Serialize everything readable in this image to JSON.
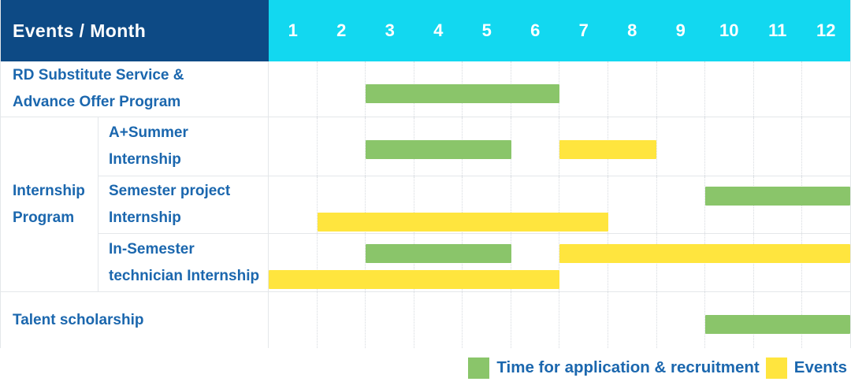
{
  "header": {
    "label": "Events / Month",
    "months": [
      "1",
      "2",
      "3",
      "4",
      "5",
      "6",
      "7",
      "8",
      "9",
      "10",
      "11",
      "12"
    ]
  },
  "rows": {
    "rd": {
      "lines": [
        "RD Substitute Service &",
        "Advance Offer Program"
      ]
    },
    "group": {
      "lines": [
        "Internship",
        "Program"
      ]
    },
    "a_summer": {
      "lines": [
        "A+Summer",
        "Internship"
      ]
    },
    "semester_project": {
      "lines": [
        "Semester project",
        "Internship"
      ]
    },
    "in_semester": {
      "lines": [
        "In-Semester",
        "technician Internship"
      ]
    },
    "talent": {
      "lines": [
        "Talent scholarship"
      ]
    }
  },
  "legend": {
    "application_label": "Time for application & recruitment",
    "event_label": "Events"
  },
  "colors": {
    "navy": "#0d4a85",
    "cyan": "#12d8f0",
    "green": "#8ac56a",
    "yellow": "#ffe53e",
    "text_blue": "#1b67ae"
  },
  "chart_data": {
    "type": "bar",
    "subtype": "gantt-schedule",
    "title": "Events / Month",
    "x_axis": {
      "label": "Month",
      "ticks": [
        1,
        2,
        3,
        4,
        5,
        6,
        7,
        8,
        9,
        10,
        11,
        12
      ],
      "range": [
        1,
        12
      ]
    },
    "bar_semantics": "start and end are month numbers, inclusive",
    "legend": [
      {
        "kind": "application",
        "label": "Time for application & recruitment",
        "color": "#8ac56a"
      },
      {
        "kind": "event",
        "label": "Events",
        "color": "#ffe53e"
      }
    ],
    "tasks": [
      {
        "group": "",
        "name": "RD Substitute Service & Advance Offer Program",
        "bars": [
          {
            "kind": "application",
            "start": 3,
            "end": 6,
            "lane": "single"
          }
        ]
      },
      {
        "group": "Internship Program",
        "name": "A+Summer Internship",
        "bars": [
          {
            "kind": "application",
            "start": 3,
            "end": 5,
            "lane": "single"
          },
          {
            "kind": "event",
            "start": 7,
            "end": 8,
            "lane": "single"
          }
        ]
      },
      {
        "group": "Internship Program",
        "name": "Semester project Internship",
        "bars": [
          {
            "kind": "application",
            "start": 10,
            "end": 12,
            "lane": "top"
          },
          {
            "kind": "event",
            "start": 2,
            "end": 7,
            "lane": "bottom"
          }
        ]
      },
      {
        "group": "Internship Program",
        "name": "In-Semester technician Internship",
        "bars": [
          {
            "kind": "application",
            "start": 3,
            "end": 5,
            "lane": "top"
          },
          {
            "kind": "event",
            "start": 7,
            "end": 12,
            "lane": "top"
          },
          {
            "kind": "event",
            "start": 1,
            "end": 6,
            "lane": "bottom"
          }
        ]
      },
      {
        "group": "",
        "name": "Talent scholarship",
        "bars": [
          {
            "kind": "application",
            "start": 10,
            "end": 12,
            "lane": "single"
          }
        ]
      }
    ]
  }
}
